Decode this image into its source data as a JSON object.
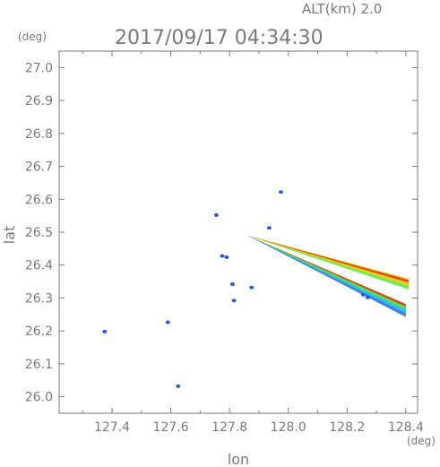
{
  "chart_data": {
    "type": "scatter",
    "title": "2017/09/17 04:34:30",
    "subtitle": "ALT(km) 2.0",
    "xlabel": "lon",
    "ylabel": "lat",
    "x_unit": "(deg)",
    "y_unit": "(deg)",
    "xlim": [
      127.22,
      128.44
    ],
    "ylim": [
      25.95,
      27.05
    ],
    "x_ticks": [
      "127.4",
      "127.6",
      "127.8",
      "128.0",
      "128.2",
      "128.4"
    ],
    "y_ticks": [
      "26.0",
      "26.1",
      "26.2",
      "26.3",
      "26.4",
      "26.5",
      "26.6",
      "26.7",
      "26.8",
      "26.9",
      "27.0"
    ],
    "grid": false,
    "colors": {
      "axis": "#7a7a7a",
      "spots": "#2a5bd7",
      "strip_red": "#e03a1c",
      "strip_yellow": "#f2d21a",
      "strip_green": "#5ee83c",
      "strip_cyan": "#29c8e8",
      "strip_blue": "#2f6fe0"
    },
    "spots": [
      {
        "x": 127.375,
        "y": 26.198
      },
      {
        "x": 127.59,
        "y": 26.226
      },
      {
        "x": 127.625,
        "y": 26.032
      },
      {
        "x": 127.755,
        "y": 26.552
      },
      {
        "x": 127.775,
        "y": 26.428
      },
      {
        "x": 127.79,
        "y": 26.424
      },
      {
        "x": 127.815,
        "y": 26.292
      },
      {
        "x": 127.81,
        "y": 26.342
      },
      {
        "x": 127.875,
        "y": 26.332
      },
      {
        "x": 127.935,
        "y": 26.513
      },
      {
        "x": 127.975,
        "y": 26.622
      },
      {
        "x": 128.255,
        "y": 26.31
      },
      {
        "x": 128.27,
        "y": 26.302
      }
    ],
    "strips": [
      {
        "from": {
          "x": 127.86,
          "y": 26.49
        },
        "to": {
          "x": 128.4,
          "y": 26.267
        }
      },
      {
        "from": {
          "x": 127.86,
          "y": 26.49
        },
        "to": {
          "x": 128.41,
          "y": 26.345
        }
      }
    ]
  }
}
